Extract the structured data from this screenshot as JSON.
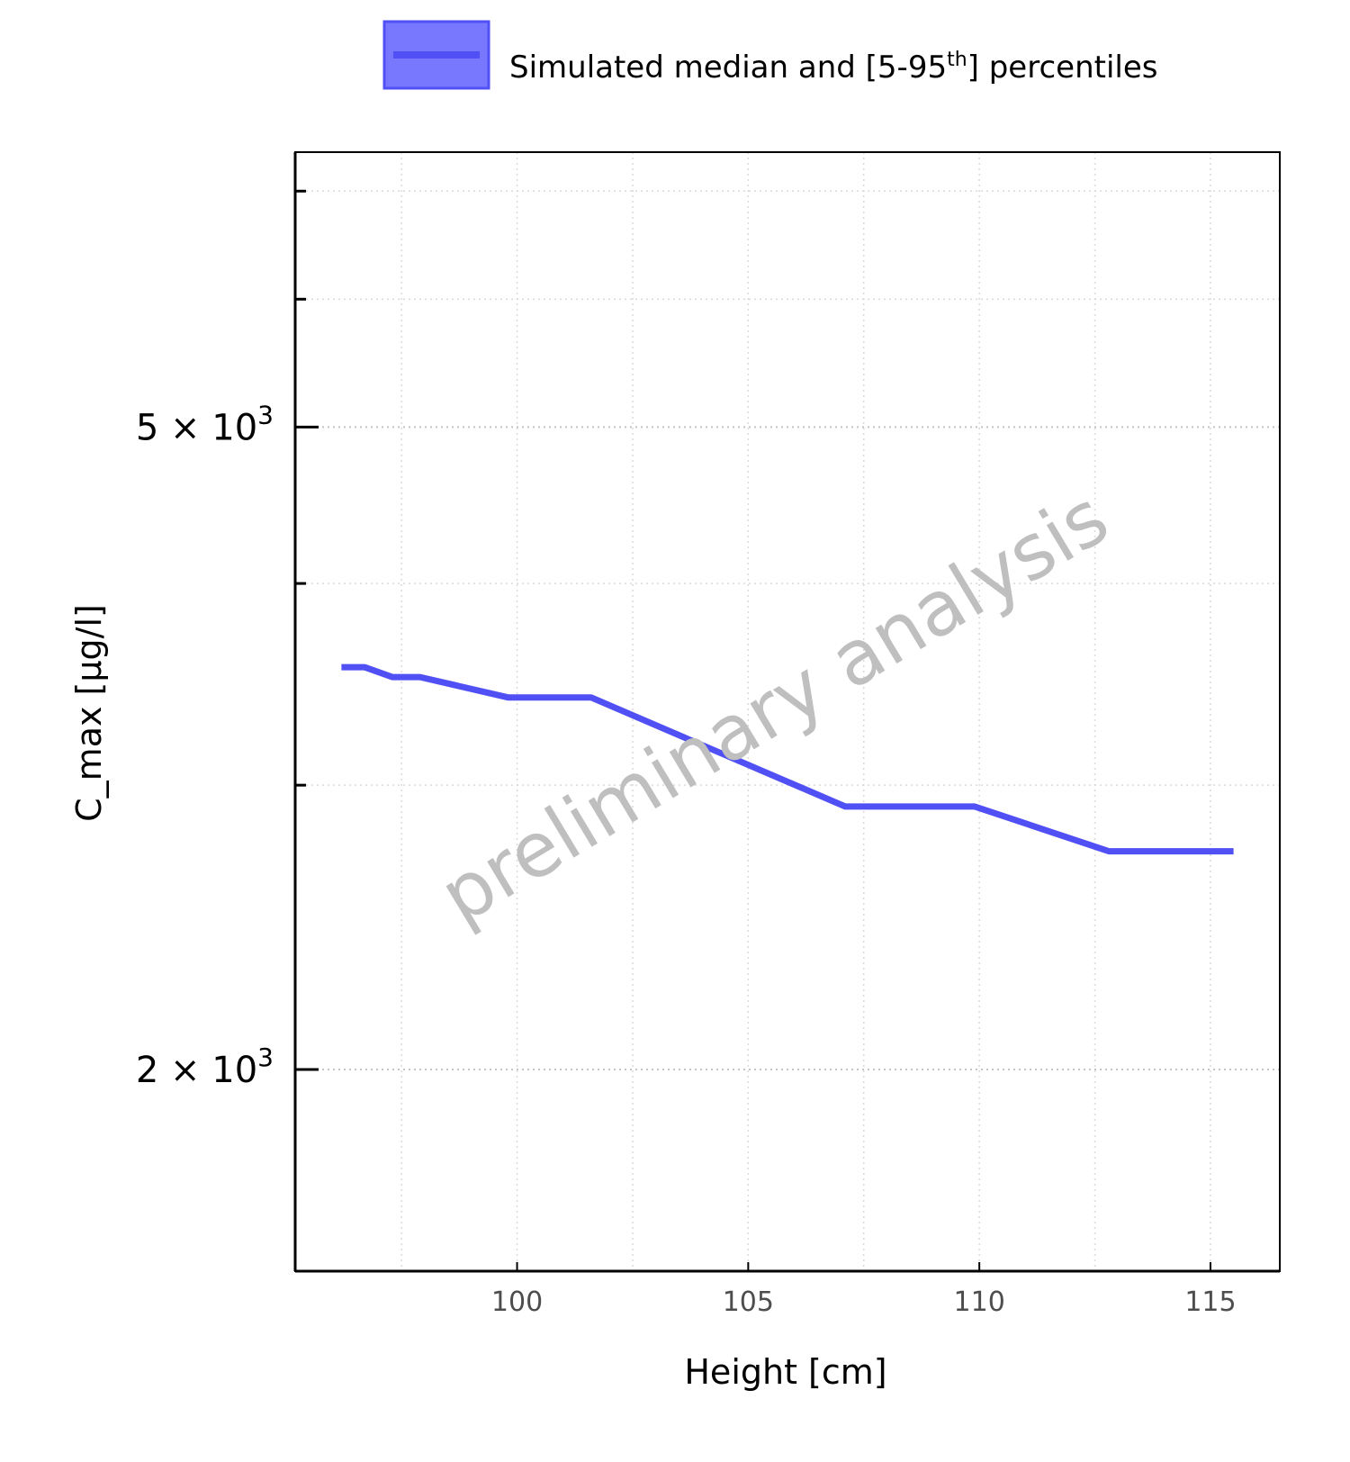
{
  "chart_data": {
    "type": "line",
    "title": "",
    "xlabel": "Height [cm]",
    "ylabel": "C_max [µg/l]",
    "x_scale": "linear",
    "y_scale": "log",
    "xlim": [
      95.2,
      116.5
    ],
    "ylim": [
      1500,
      7400
    ],
    "x_ticks": [
      100,
      105,
      110,
      115
    ],
    "x_tick_labels": [
      "100",
      "105",
      "110",
      "115"
    ],
    "y_major_ticks": [
      {
        "value": 2000,
        "mantissa": "2",
        "base": "10",
        "exponent": "3"
      },
      {
        "value": 5000,
        "mantissa": "5",
        "base": "10",
        "exponent": "3"
      }
    ],
    "y_minor_ticks": [
      3000,
      4000,
      6000,
      7000
    ],
    "grid": true,
    "legend": {
      "position": "top",
      "entries": [
        {
          "label": "Simulated median and [5-95",
          "superscript": "th",
          "suffix": "] percentiles",
          "color": "#5050f5"
        }
      ]
    },
    "watermark": "preliminary analysis",
    "series": [
      {
        "name": "Simulated median and [5-95th] percentiles",
        "color": "#5050f5",
        "x": [
          96.2,
          96.7,
          97.3,
          97.9,
          99.8,
          101.6,
          107.1,
          109.9,
          112.8,
          115.5
        ],
        "y": [
          3550,
          3550,
          3500,
          3500,
          3400,
          3400,
          2910,
          2910,
          2730,
          2730
        ]
      }
    ]
  }
}
